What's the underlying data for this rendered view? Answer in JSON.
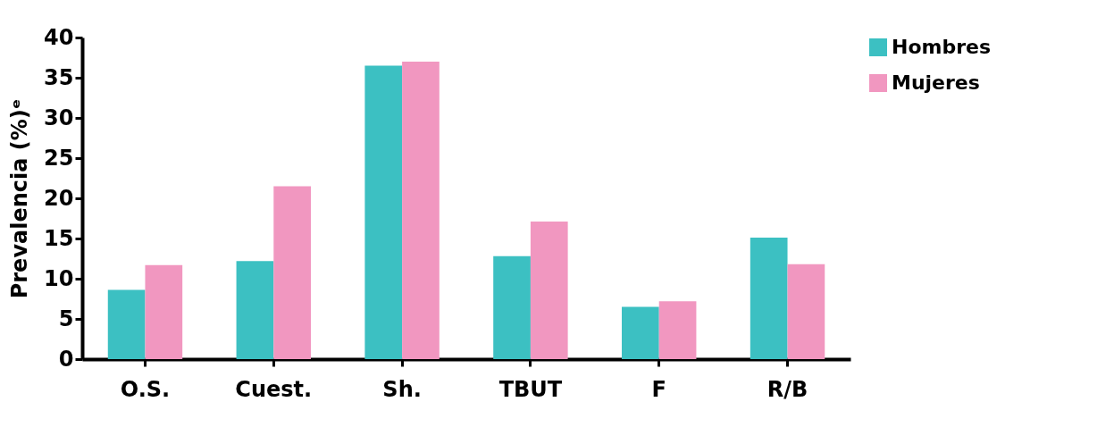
{
  "chart_data": {
    "type": "bar",
    "ylabel": "Prevalencia (%)ᵉ",
    "categories": [
      "O.S.",
      "Cuest.",
      "Sh.",
      "TBUT",
      "F",
      "R/B"
    ],
    "series": [
      {
        "name": "Hombres",
        "color": "#3cc0c2",
        "values": [
          8.6,
          12.2,
          36.5,
          12.8,
          6.5,
          15.1
        ]
      },
      {
        "name": "Mujeres",
        "color": "#f197c0",
        "values": [
          11.7,
          21.5,
          37.0,
          17.1,
          7.2,
          11.8
        ]
      }
    ],
    "ylim": [
      0,
      40
    ],
    "yticks": [
      0,
      5,
      10,
      15,
      20,
      25,
      30,
      35,
      40
    ],
    "grid": false,
    "legend": "top right"
  }
}
